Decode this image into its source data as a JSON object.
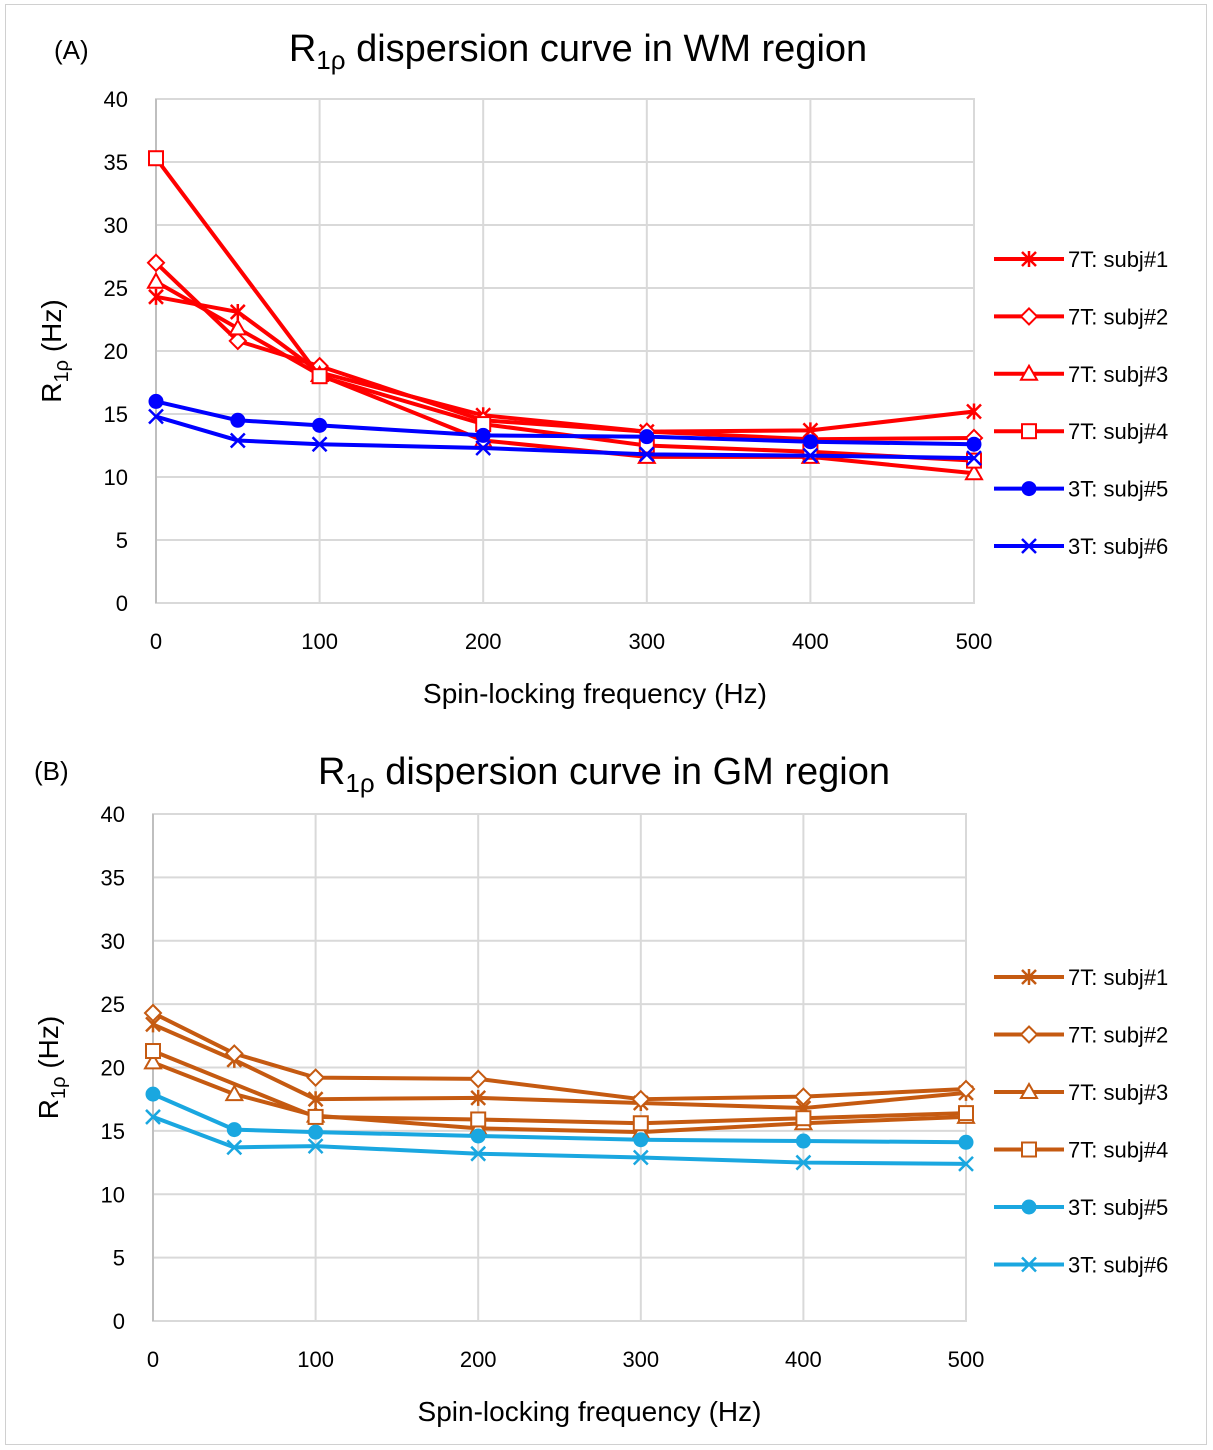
{
  "chart_data": [
    {
      "type": "line",
      "panel_label": "(A)",
      "title_main": "R",
      "title_sub": "1ρ",
      "title_rest": " dispersion curve in WM region",
      "xlabel": "Spin-locking frequency (Hz)",
      "ylabel_main": "R",
      "ylabel_sub": "1ρ",
      "ylabel_rest": " (Hz)",
      "x": [
        0,
        50,
        100,
        200,
        300,
        400,
        500
      ],
      "xticks": [
        "0",
        "100",
        "200",
        "300",
        "400",
        "500"
      ],
      "xtick_values": [
        0,
        100,
        200,
        300,
        400,
        500
      ],
      "yticks": [
        "0",
        "5",
        "10",
        "15",
        "20",
        "25",
        "30",
        "35",
        "40"
      ],
      "ylim": [
        0,
        40
      ],
      "xlim": [
        0,
        500
      ],
      "grid": true,
      "legend_position": "right",
      "series": [
        {
          "name": "7T: subj#1",
          "color": "#ff0000",
          "marker": "asterisk",
          "values": [
            24.3,
            23.1,
            18.3,
            14.9,
            13.6,
            13.7,
            15.2
          ]
        },
        {
          "name": "7T: subj#2",
          "color": "#ff0000",
          "marker": "diamond",
          "values": [
            27.0,
            20.8,
            18.8,
            14.5,
            13.6,
            13.0,
            13.1
          ]
        },
        {
          "name": "7T: subj#3",
          "color": "#ff0000",
          "marker": "triangle",
          "values": [
            25.5,
            21.8,
            18.1,
            12.9,
            11.6,
            11.6,
            10.3
          ]
        },
        {
          "name": "7T: subj#4",
          "color": "#ff0000",
          "marker": "square",
          "values": [
            35.3,
            null,
            18.0,
            14.2,
            12.5,
            12.0,
            11.3
          ]
        },
        {
          "name": "3T: subj#5",
          "color": "#0000ff",
          "marker": "circle",
          "values": [
            16.0,
            14.5,
            14.1,
            13.3,
            13.2,
            12.8,
            12.6
          ]
        },
        {
          "name": "3T: subj#6",
          "color": "#0000ff",
          "marker": "x",
          "values": [
            14.8,
            12.9,
            12.6,
            12.3,
            11.8,
            11.7,
            11.5
          ]
        }
      ]
    },
    {
      "type": "line",
      "panel_label": "(B)",
      "title_main": "R",
      "title_sub": "1ρ",
      "title_rest": " dispersion curve in GM region",
      "xlabel": "Spin-locking frequency (Hz)",
      "ylabel_main": "R",
      "ylabel_sub": "1ρ",
      "ylabel_rest": " (Hz)",
      "x": [
        0,
        50,
        100,
        200,
        300,
        400,
        500
      ],
      "xticks": [
        "0",
        "100",
        "200",
        "300",
        "400",
        "500"
      ],
      "xtick_values": [
        0,
        100,
        200,
        300,
        400,
        500
      ],
      "yticks": [
        "0",
        "5",
        "10",
        "15",
        "20",
        "25",
        "30",
        "35",
        "40"
      ],
      "ylim": [
        0,
        40
      ],
      "xlim": [
        0,
        500
      ],
      "grid": true,
      "legend_position": "right",
      "series": [
        {
          "name": "7T: subj#1",
          "color": "#c55a11",
          "marker": "asterisk",
          "values": [
            23.4,
            20.6,
            17.5,
            17.6,
            17.2,
            16.8,
            18.0
          ]
        },
        {
          "name": "7T: subj#2",
          "color": "#c55a11",
          "marker": "diamond",
          "values": [
            24.3,
            21.1,
            19.2,
            19.1,
            17.5,
            17.7,
            18.3
          ]
        },
        {
          "name": "7T: subj#3",
          "color": "#c55a11",
          "marker": "triangle",
          "values": [
            20.4,
            17.9,
            16.2,
            15.2,
            14.9,
            15.6,
            16.1
          ]
        },
        {
          "name": "7T: subj#4",
          "color": "#c55a11",
          "marker": "square",
          "values": [
            21.3,
            null,
            16.1,
            15.9,
            15.6,
            16.0,
            16.4
          ]
        },
        {
          "name": "3T: subj#5",
          "color": "#1aa7e0",
          "marker": "circle",
          "values": [
            17.9,
            15.1,
            14.9,
            14.6,
            14.3,
            14.2,
            14.1
          ]
        },
        {
          "name": "3T: subj#6",
          "color": "#1aa7e0",
          "marker": "x",
          "values": [
            16.1,
            13.7,
            13.8,
            13.2,
            12.9,
            12.5,
            12.4
          ]
        }
      ]
    }
  ]
}
